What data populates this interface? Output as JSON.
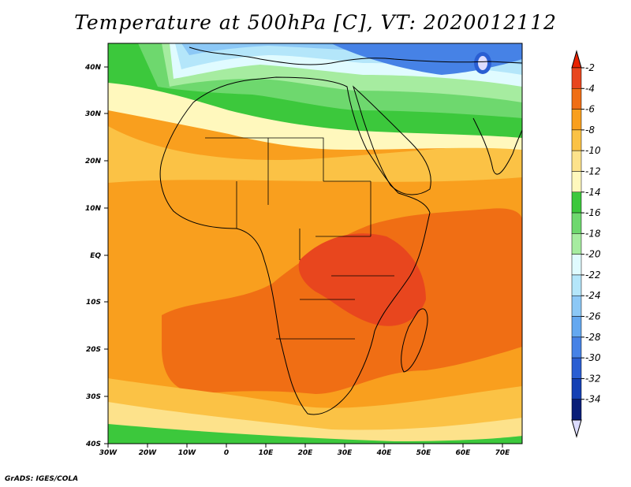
{
  "title": "Temperature at 500hPa [C], VT: 2020012112",
  "footer": "GrADS: IGES/COLA",
  "map": {
    "region": "Africa",
    "lon_range": [
      -30,
      75
    ],
    "lat_range": [
      -40,
      45
    ],
    "lon_ticks": [
      "30W",
      "20W",
      "10W",
      "0",
      "10E",
      "20E",
      "30E",
      "40E",
      "50E",
      "60E",
      "70E"
    ],
    "lat_ticks": [
      "40N",
      "30N",
      "20N",
      "10N",
      "EQ",
      "10S",
      "20S",
      "30S",
      "40S"
    ]
  },
  "colorbar": {
    "labels": [
      "-2",
      "-4",
      "-6",
      "-8",
      "-10",
      "-12",
      "-14",
      "-16",
      "-18",
      "-20",
      "-22",
      "-24",
      "-26",
      "-28",
      "-30",
      "-32",
      "-34"
    ],
    "colors": [
      "#e8461e",
      "#f06e14",
      "#f99f1e",
      "#fbc245",
      "#fde28b",
      "#fff8bd",
      "#3cc83c",
      "#6ed86e",
      "#a6eca0",
      "#e0fbff",
      "#b4e6fa",
      "#8cc8f6",
      "#64a8f0",
      "#4682e6",
      "#2a5ed2",
      "#1440b4",
      "#0a1e78"
    ],
    "top_cap": "#e82200",
    "bottom_cap": "#dcdcff"
  }
}
